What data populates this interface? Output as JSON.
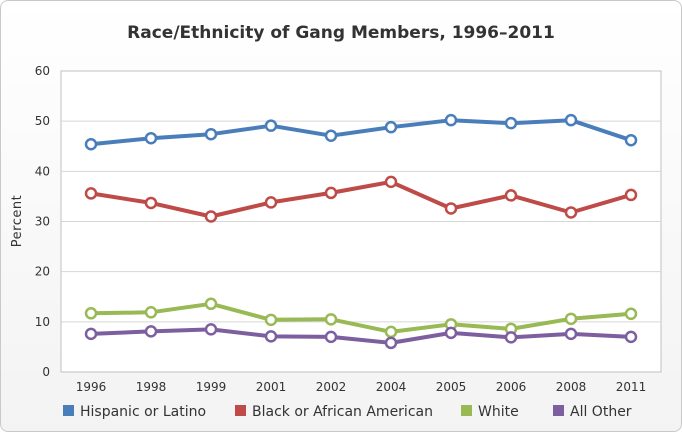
{
  "chart_data": {
    "type": "line",
    "title": "Race/Ethnicity of Gang Members, 1996–2011",
    "xlabel": "",
    "ylabel": "Percent",
    "ylim": [
      0,
      60
    ],
    "yticks": [
      0,
      10,
      20,
      30,
      40,
      50,
      60
    ],
    "grid": true,
    "legend_position": "bottom",
    "categories": [
      "1996",
      "1998",
      "1999",
      "2001",
      "2002",
      "2004",
      "2005",
      "2006",
      "2008",
      "2011"
    ],
    "series": [
      {
        "name": "Hispanic or Latino",
        "color": "#4a7ebb",
        "values": [
          45.4,
          46.6,
          47.4,
          49.1,
          47.1,
          48.8,
          50.2,
          49.6,
          50.2,
          46.2
        ]
      },
      {
        "name": "Black or African American",
        "color": "#be4b48",
        "values": [
          35.6,
          33.7,
          31.0,
          33.8,
          35.7,
          37.9,
          32.6,
          35.2,
          31.8,
          35.3
        ]
      },
      {
        "name": "White",
        "color": "#98b954",
        "values": [
          11.7,
          11.9,
          13.6,
          10.4,
          10.5,
          8.0,
          9.5,
          8.6,
          10.6,
          11.6
        ]
      },
      {
        "name": "All Other",
        "color": "#7d5fa0",
        "values": [
          7.6,
          8.1,
          8.5,
          7.1,
          7.0,
          5.8,
          7.8,
          6.9,
          7.6,
          7.0
        ]
      }
    ]
  }
}
